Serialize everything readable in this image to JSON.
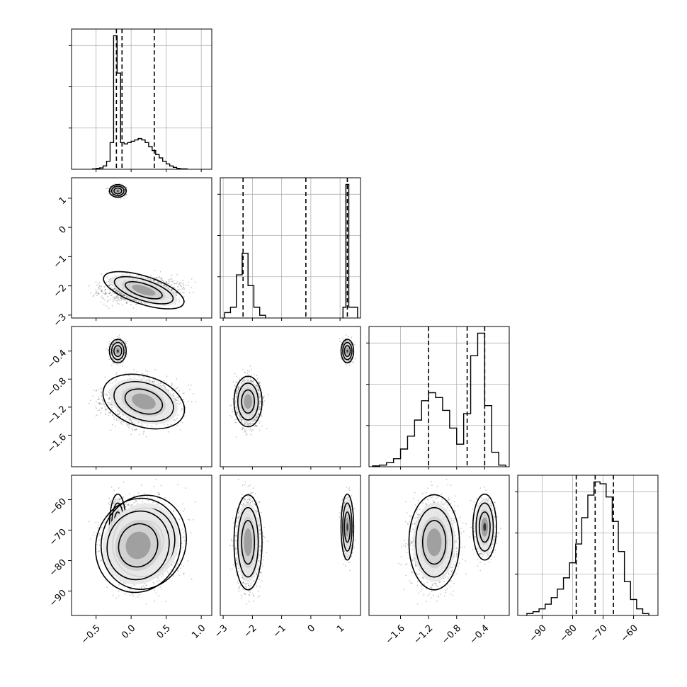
{
  "chart_data": {
    "type": "corner",
    "parameters": [
      {
        "range": [
          -0.85,
          1.15
        ],
        "ticks": [
          "−0.5",
          "0.0",
          "0.5",
          "1.0"
        ],
        "tick_values": [
          -0.5,
          0.0,
          0.5,
          1.0
        ]
      },
      {
        "range": [
          -3.1,
          1.7
        ],
        "ticks": [
          "−3",
          "−2",
          "−1",
          "0",
          "1"
        ],
        "tick_values": [
          -3,
          -2,
          -1,
          0,
          1
        ]
      },
      {
        "range": [
          -2.05,
          -0.05
        ],
        "ticks": [
          "−1.6",
          "−1.2",
          "−0.8",
          "−0.4"
        ],
        "tick_values": [
          -1.6,
          -1.2,
          -0.8,
          -0.4
        ]
      },
      {
        "range": [
          -98,
          -52
        ],
        "ticks": [
          "−90",
          "−80",
          "−70",
          "−60"
        ],
        "tick_values": [
          -90,
          -80,
          -70,
          -60
        ]
      }
    ],
    "histograms": [
      {
        "bins": [
          [
            -0.55,
            -0.5,
            0.003
          ],
          [
            -0.5,
            -0.45,
            0.006
          ],
          [
            -0.45,
            -0.4,
            0.01
          ],
          [
            -0.4,
            -0.35,
            0.025
          ],
          [
            -0.35,
            -0.3,
            0.06
          ],
          [
            -0.3,
            -0.25,
            0.2
          ],
          [
            -0.25,
            -0.2,
            1.0
          ],
          [
            -0.2,
            -0.15,
            0.72
          ],
          [
            -0.15,
            -0.1,
            0.2
          ],
          [
            -0.1,
            -0.05,
            0.19
          ],
          [
            -0.05,
            0.0,
            0.2
          ],
          [
            0.0,
            0.05,
            0.21
          ],
          [
            0.05,
            0.1,
            0.22
          ],
          [
            0.1,
            0.15,
            0.23
          ],
          [
            0.15,
            0.2,
            0.22
          ],
          [
            0.2,
            0.25,
            0.2
          ],
          [
            0.25,
            0.3,
            0.17
          ],
          [
            0.3,
            0.35,
            0.14
          ],
          [
            0.35,
            0.4,
            0.11
          ],
          [
            0.4,
            0.45,
            0.085
          ],
          [
            0.45,
            0.5,
            0.06
          ],
          [
            0.5,
            0.55,
            0.04
          ],
          [
            0.55,
            0.6,
            0.025
          ],
          [
            0.6,
            0.65,
            0.014
          ],
          [
            0.65,
            0.7,
            0.007
          ],
          [
            0.7,
            0.8,
            0.003
          ]
        ],
        "quantiles": [
          -0.21,
          -0.13,
          0.33
        ]
      },
      {
        "bins": [
          [
            -2.95,
            -2.75,
            0.04
          ],
          [
            -2.75,
            -2.55,
            0.08
          ],
          [
            -2.55,
            -2.35,
            0.32
          ],
          [
            -2.35,
            -2.15,
            0.48
          ],
          [
            -2.15,
            -1.95,
            0.24
          ],
          [
            -1.95,
            -1.75,
            0.08
          ],
          [
            -1.75,
            -1.55,
            0.02
          ],
          [
            1.1,
            1.2,
            0.08
          ],
          [
            1.2,
            1.3,
            0.99
          ],
          [
            1.3,
            1.6,
            0.08
          ]
        ],
        "quantiles": [
          -2.32,
          -0.17,
          1.25
        ]
      },
      {
        "bins": [
          [
            -2.0,
            -1.9,
            0.005
          ],
          [
            -1.9,
            -1.8,
            0.01
          ],
          [
            -1.8,
            -1.7,
            0.025
          ],
          [
            -1.7,
            -1.6,
            0.05
          ],
          [
            -1.6,
            -1.5,
            0.11
          ],
          [
            -1.5,
            -1.4,
            0.19
          ],
          [
            -1.4,
            -1.3,
            0.29
          ],
          [
            -1.3,
            -1.2,
            0.41
          ],
          [
            -1.2,
            -1.1,
            0.46
          ],
          [
            -1.1,
            -1.0,
            0.43
          ],
          [
            -1.0,
            -0.9,
            0.35
          ],
          [
            -0.9,
            -0.8,
            0.24
          ],
          [
            -0.8,
            -0.7,
            0.14
          ],
          [
            -0.7,
            -0.6,
            0.33
          ],
          [
            -0.6,
            -0.5,
            0.69
          ],
          [
            -0.5,
            -0.4,
            0.83
          ],
          [
            -0.4,
            -0.3,
            0.38
          ],
          [
            -0.3,
            -0.2,
            0.09
          ],
          [
            -0.2,
            -0.1,
            0.01
          ]
        ],
        "quantiles": [
          -1.2,
          -0.65,
          -0.4
        ]
      },
      {
        "bins": [
          [
            -95,
            -93,
            0.01
          ],
          [
            -93,
            -91,
            0.02
          ],
          [
            -91,
            -89,
            0.035
          ],
          [
            -89,
            -87,
            0.06
          ],
          [
            -87,
            -85,
            0.095
          ],
          [
            -85,
            -83,
            0.14
          ],
          [
            -83,
            -81,
            0.2
          ],
          [
            -81,
            -79,
            0.28
          ],
          [
            -79,
            -77,
            0.38
          ],
          [
            -77,
            -75,
            0.52
          ],
          [
            -75,
            -73,
            0.64
          ],
          [
            -73,
            -71,
            0.71
          ],
          [
            -71,
            -69,
            0.7
          ],
          [
            -69,
            -67,
            0.63
          ],
          [
            -67,
            -65,
            0.5
          ],
          [
            -65,
            -63,
            0.34
          ],
          [
            -63,
            -61,
            0.18
          ],
          [
            -61,
            -59,
            0.085
          ],
          [
            -59,
            -57,
            0.035
          ],
          [
            -57,
            -55,
            0.01
          ]
        ],
        "quantiles": [
          -78.8,
          -72.6,
          -66.6
        ]
      }
    ],
    "modes": [
      {
        "w": 0.28,
        "mean": [
          -0.19,
          1.25,
          -0.4,
          -69.0
        ],
        "sd": [
          0.05,
          0.09,
          0.07,
          4.5
        ]
      },
      {
        "w": 0.45,
        "mean": [
          0.18,
          -2.15,
          -1.12,
          -74.0
        ],
        "sd": [
          0.25,
          0.2,
          0.15,
          6.5
        ]
      },
      {
        "w": 0.27,
        "mean": [
          0.1,
          -2.15,
          -1.12,
          -75.0
        ],
        "sd": [
          0.25,
          0.2,
          0.15,
          6.5
        ]
      }
    ],
    "title": "",
    "xlabel": "",
    "ylabel": "",
    "grid": true
  }
}
